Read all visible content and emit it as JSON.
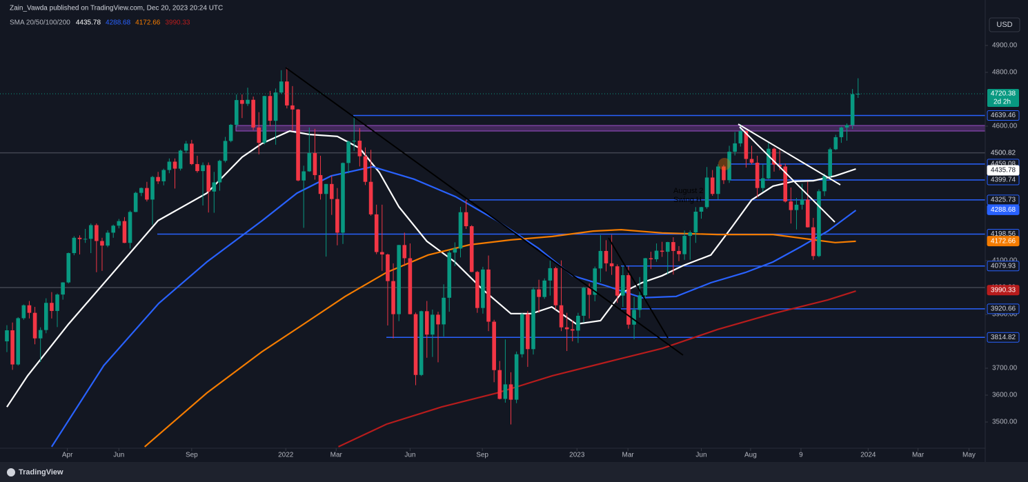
{
  "chart_data": {
    "type": "candlestick",
    "publisher": "Zain_Vawda published on TradingView.com, Dec 20, 2023 20:24 UTC",
    "indicator": "SMA 20/50/100/200",
    "currency": "USD",
    "brand": "TradingView",
    "countdown": "2d 2h",
    "annotations": [
      "August 2",
      "Swing H"
    ],
    "up_color": "#089981",
    "down_color": "#f23645",
    "ylim": [
      3377,
      5069
    ],
    "xlim": [
      -1.23,
      174.7
    ],
    "yticks": [
      {
        "value": 4900,
        "label": "4900.00"
      },
      {
        "value": 4800,
        "label": "4800.00"
      },
      {
        "value": 4600,
        "label": "4600.00"
      },
      {
        "value": 4100,
        "label": "4100.00"
      },
      {
        "value": 3900,
        "label": "3900.00"
      },
      {
        "value": 3700,
        "label": "3700.00"
      },
      {
        "value": 3600,
        "label": "3600.00"
      },
      {
        "value": 3500,
        "label": "3500.00"
      }
    ],
    "xticks": [
      {
        "value": 10.8,
        "label": "Apr"
      },
      {
        "value": 20.0,
        "label": "Jun"
      },
      {
        "value": 33.0,
        "label": "Sep"
      },
      {
        "value": 49.8,
        "label": "2022"
      },
      {
        "value": 58.8,
        "label": "Mar"
      },
      {
        "value": 72.0,
        "label": "Jun"
      },
      {
        "value": 84.9,
        "label": "Sep"
      },
      {
        "value": 101.8,
        "label": "2023"
      },
      {
        "value": 110.9,
        "label": "Mar"
      },
      {
        "value": 124.0,
        "label": "Jun"
      },
      {
        "value": 132.8,
        "label": "Aug"
      },
      {
        "value": 141.8,
        "label": "9"
      },
      {
        "value": 153.8,
        "label": "2024"
      },
      {
        "value": 162.7,
        "label": "Mar"
      },
      {
        "value": 171.8,
        "label": "May"
      }
    ],
    "levels": [
      4639.46,
      4459.08,
      4399.74,
      4325.73,
      4198.56,
      4079.93,
      3920.66,
      3814.82
    ],
    "level_color": "#2962ff",
    "reference_levels": [
      4500.82,
      {
        "value": 4000,
        "label": "4000.00"
      }
    ],
    "ohlc": [
      [
        3800,
        3860,
        3760,
        3841
      ],
      [
        3841,
        3870,
        3694,
        3714
      ],
      [
        3714,
        3890,
        3710,
        3886
      ],
      [
        3886,
        3937,
        3880,
        3934
      ],
      [
        3934,
        3950,
        3885,
        3906
      ],
      [
        3906,
        3928,
        3789,
        3811
      ],
      [
        3811,
        3852,
        3723,
        3842
      ],
      [
        3842,
        3960,
        3830,
        3943
      ],
      [
        3943,
        3983,
        3885,
        3913
      ],
      [
        3913,
        3978,
        3853,
        3974
      ],
      [
        3974,
        4020,
        3955,
        4019
      ],
      [
        4019,
        4130,
        4015,
        4128
      ],
      [
        4128,
        4191,
        4120,
        4185
      ],
      [
        4185,
        4194,
        4123,
        4180
      ],
      [
        4180,
        4218,
        4166,
        4181
      ],
      [
        4181,
        4238,
        4128,
        4232
      ],
      [
        4232,
        4238,
        4057,
        4173
      ],
      [
        4173,
        4185,
        4062,
        4156
      ],
      [
        4156,
        4213,
        4150,
        4204
      ],
      [
        4204,
        4234,
        4185,
        4230
      ],
      [
        4230,
        4255,
        4220,
        4247
      ],
      [
        4247,
        4262,
        4165,
        4166
      ],
      [
        4166,
        4286,
        4145,
        4281
      ],
      [
        4281,
        4356,
        4280,
        4352
      ],
      [
        4352,
        4372,
        4340,
        4370
      ],
      [
        4370,
        4393,
        4320,
        4327
      ],
      [
        4327,
        4415,
        4233,
        4411
      ],
      [
        4411,
        4430,
        4385,
        4395
      ],
      [
        4395,
        4442,
        4380,
        4437
      ],
      [
        4437,
        4480,
        4425,
        4468
      ],
      [
        4468,
        4480,
        4368,
        4442
      ],
      [
        4442,
        4513,
        4435,
        4509
      ],
      [
        4509,
        4545,
        4500,
        4535
      ],
      [
        4535,
        4549,
        4455,
        4459
      ],
      [
        4459,
        4490,
        4427,
        4433
      ],
      [
        4433,
        4465,
        4305,
        4455
      ],
      [
        4455,
        4465,
        4279,
        4357
      ],
      [
        4357,
        4430,
        4278,
        4391
      ],
      [
        4391,
        4475,
        4360,
        4471
      ],
      [
        4471,
        4560,
        4465,
        4545
      ],
      [
        4545,
        4608,
        4540,
        4605
      ],
      [
        4605,
        4718,
        4595,
        4697
      ],
      [
        4697,
        4718,
        4630,
        4683
      ],
      [
        4683,
        4743,
        4675,
        4698
      ],
      [
        4698,
        4710,
        4585,
        4595
      ],
      [
        4595,
        4652,
        4495,
        4538
      ],
      [
        4538,
        4713,
        4532,
        4712
      ],
      [
        4712,
        4731,
        4600,
        4620
      ],
      [
        4620,
        4740,
        4531,
        4725
      ],
      [
        4725,
        4808,
        4720,
        4766
      ],
      [
        4766,
        4818,
        4666,
        4677
      ],
      [
        4677,
        4749,
        4582,
        4662
      ],
      [
        4662,
        4664,
        4395,
        4398
      ],
      [
        4398,
        4453,
        4222,
        4432
      ],
      [
        4432,
        4595,
        4430,
        4500
      ],
      [
        4500,
        4590,
        4401,
        4418
      ],
      [
        4418,
        4490,
        4327,
        4348
      ],
      [
        4348,
        4385,
        4115,
        4385
      ],
      [
        4385,
        4416,
        4270,
        4329
      ],
      [
        4329,
        4370,
        4157,
        4204
      ],
      [
        4204,
        4465,
        4162,
        4463
      ],
      [
        4463,
        4546,
        4425,
        4543
      ],
      [
        4543,
        4637,
        4508,
        4546
      ],
      [
        4546,
        4593,
        4450,
        4488
      ],
      [
        4488,
        4521,
        4381,
        4393
      ],
      [
        4393,
        4512,
        4267,
        4272
      ],
      [
        4272,
        4308,
        4124,
        4132
      ],
      [
        4132,
        4308,
        4062,
        4123
      ],
      [
        4123,
        4126,
        3859,
        4024
      ],
      [
        4024,
        4090,
        3811,
        3901
      ],
      [
        3901,
        4159,
        3875,
        4158
      ],
      [
        4158,
        4204,
        4080,
        4109
      ],
      [
        4109,
        4164,
        3900,
        3901
      ],
      [
        3901,
        3907,
        3637,
        3675
      ],
      [
        3675,
        3914,
        3671,
        3912
      ],
      [
        3912,
        3950,
        3739,
        3825
      ],
      [
        3825,
        3918,
        3742,
        3899
      ],
      [
        3899,
        3910,
        3722,
        3863
      ],
      [
        3863,
        4012,
        3818,
        3962
      ],
      [
        3962,
        4140,
        3910,
        4130
      ],
      [
        4130,
        4168,
        4080,
        4145
      ],
      [
        4145,
        4300,
        4112,
        4280
      ],
      [
        4280,
        4325,
        4218,
        4228
      ],
      [
        4228,
        4232,
        4057,
        4058
      ],
      [
        4058,
        4062,
        3906,
        3924
      ],
      [
        3924,
        4077,
        3903,
        4067
      ],
      [
        4067,
        4119,
        3838,
        3873
      ],
      [
        3873,
        3880,
        3648,
        3693
      ],
      [
        3693,
        3727,
        3584,
        3586
      ],
      [
        3586,
        3807,
        3572,
        3640
      ],
      [
        3640,
        3685,
        3491,
        3583
      ],
      [
        3583,
        3762,
        3570,
        3752
      ],
      [
        3752,
        3905,
        3740,
        3901
      ],
      [
        3901,
        3913,
        3705,
        3771
      ],
      [
        3771,
        4001,
        3751,
        3993
      ],
      [
        3993,
        4029,
        3906,
        3965
      ],
      [
        3965,
        4034,
        3958,
        4026
      ],
      [
        4026,
        4100,
        3970,
        4072
      ],
      [
        4072,
        4077,
        3918,
        3934
      ],
      [
        3934,
        4101,
        3838,
        3852
      ],
      [
        3852,
        3906,
        3764,
        3845
      ],
      [
        3845,
        3878,
        3800,
        3840
      ],
      [
        3840,
        3906,
        3794,
        3895
      ],
      [
        3895,
        4003,
        3870,
        3999
      ],
      [
        3999,
        4015,
        3885,
        3973
      ],
      [
        3973,
        4078,
        3949,
        4071
      ],
      [
        4071,
        4195,
        4020,
        4136
      ],
      [
        4136,
        4176,
        4060,
        4090
      ],
      [
        4090,
        4196,
        4047,
        4079
      ],
      [
        4079,
        4086,
        3943,
        3970
      ],
      [
        3970,
        4079,
        3928,
        4046
      ],
      [
        4046,
        4079,
        3847,
        3862
      ],
      [
        3862,
        3965,
        3808,
        3917
      ],
      [
        3917,
        4039,
        3888,
        3971
      ],
      [
        3971,
        4110,
        3950,
        4109
      ],
      [
        4109,
        4133,
        4069,
        4105
      ],
      [
        4105,
        4164,
        4096,
        4137
      ],
      [
        4137,
        4170,
        4114,
        4133
      ],
      [
        4133,
        4170,
        4049,
        4169
      ],
      [
        4169,
        4187,
        4048,
        4136
      ],
      [
        4136,
        4154,
        4098,
        4124
      ],
      [
        4124,
        4212,
        4103,
        4192
      ],
      [
        4192,
        4212,
        4103,
        4205
      ],
      [
        4205,
        4299,
        4166,
        4282
      ],
      [
        4282,
        4300,
        4256,
        4299
      ],
      [
        4299,
        4448,
        4293,
        4409
      ],
      [
        4409,
        4437,
        4341,
        4348
      ],
      [
        4348,
        4458,
        4328,
        4450
      ],
      [
        4450,
        4456,
        4385,
        4399
      ],
      [
        4399,
        4527,
        4389,
        4505
      ],
      [
        4505,
        4578,
        4491,
        4536
      ],
      [
        4536,
        4607,
        4524,
        4582
      ],
      [
        4582,
        4584,
        4446,
        4478
      ],
      [
        4478,
        4527,
        4458,
        4464
      ],
      [
        4464,
        4490,
        4335,
        4370
      ],
      [
        4370,
        4458,
        4356,
        4406
      ],
      [
        4406,
        4541,
        4403,
        4516
      ],
      [
        4516,
        4521,
        4431,
        4457
      ],
      [
        4457,
        4511,
        4436,
        4450
      ],
      [
        4450,
        4461,
        4316,
        4320
      ],
      [
        4320,
        4372,
        4238,
        4288
      ],
      [
        4288,
        4333,
        4216,
        4308
      ],
      [
        4308,
        4386,
        4290,
        4327
      ],
      [
        4327,
        4394,
        4223,
        4224
      ],
      [
        4224,
        4259,
        4103,
        4117
      ],
      [
        4117,
        4365,
        4113,
        4358
      ],
      [
        4358,
        4424,
        4340,
        4415
      ],
      [
        4415,
        4520,
        4400,
        4514
      ],
      [
        4514,
        4568,
        4511,
        4559
      ],
      [
        4559,
        4598,
        4538,
        4595
      ],
      [
        4595,
        4610,
        4546,
        4604
      ],
      [
        4604,
        4738,
        4590,
        4719
      ],
      [
        4719,
        4778,
        4705,
        4720.38
      ]
    ],
    "series": [
      {
        "color": "#ffffff",
        "legend_value": 4435.78,
        "label_text_color": "#131722",
        "x": [
          0,
          3.7,
          11,
          18.5,
          27,
          35.7,
          42,
          45.6,
          50.5,
          54,
          59,
          63,
          66.5,
          70,
          75,
          80,
          85,
          90,
          93.7,
          97.3,
          101.7,
          106,
          109.7,
          113.4,
          117,
          120.8,
          125.7,
          129.4,
          133,
          136.8,
          140.5,
          144,
          147.9,
          151.6
        ],
        "values": [
          3556,
          3672,
          3864,
          4044,
          4249,
          4351,
          4485,
          4536,
          4582,
          4569,
          4562,
          4518,
          4428,
          4300,
          4172,
          4095,
          3992,
          3903,
          3903,
          3928,
          3864,
          3877,
          3979,
          4018,
          4044,
          4082,
          4121,
          4223,
          4326,
          4377,
          4395,
          4397,
          4415,
          4441
        ]
      },
      {
        "color": "#2962ff",
        "legend_value": 4288.68,
        "label_text_color": "#ffffff",
        "x": [
          8,
          17.3,
          27.1,
          35.7,
          45.6,
          51.8,
          57.9,
          65.3,
          72.7,
          80.1,
          87.5,
          94.9,
          101,
          107.2,
          113.4,
          119.5,
          125.7,
          131.9,
          136.8,
          141.7,
          146.6,
          151.6
        ],
        "values": [
          3408,
          3710,
          3941,
          4095,
          4249,
          4351,
          4415,
          4449,
          4403,
          4338,
          4249,
          4146,
          4044,
          4005,
          3962,
          3967,
          4018,
          4056,
          4095,
          4151,
          4210,
          4287
        ]
      },
      {
        "color": "#f57c00",
        "legend_value": 4172.66,
        "label_text_color": "#ffffff",
        "x": [
          24.6,
          35.7,
          45.6,
          53,
          60.4,
          67.8,
          75.2,
          82.6,
          90,
          97.4,
          104.7,
          109.7,
          117,
          126.9,
          136.8,
          144.2,
          147.9,
          151.6
        ],
        "values": [
          3408,
          3608,
          3762,
          3864,
          3967,
          4056,
          4121,
          4159,
          4177,
          4190,
          4210,
          4215,
          4203,
          4197,
          4197,
          4177,
          4167,
          4172
        ]
      },
      {
        "color": "#b71c1c",
        "legend_value": 3990.33,
        "label_text_color": "#ffffff",
        "x": [
          59.2,
          67.8,
          77.6,
          87.5,
          97.4,
          107.2,
          117.1,
          126.9,
          136.8,
          146.6,
          151.6
        ],
        "values": [
          3408,
          3492,
          3556,
          3608,
          3672,
          3723,
          3774,
          3844,
          3903,
          3954,
          3987
        ]
      }
    ]
  }
}
